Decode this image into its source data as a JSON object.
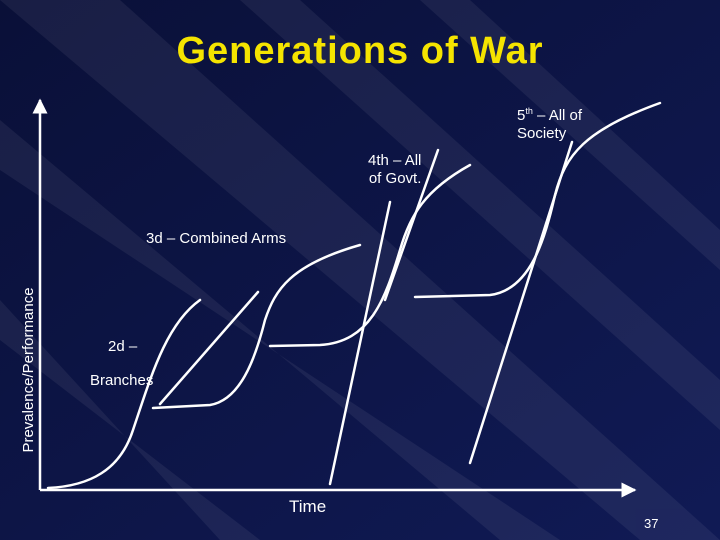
{
  "slide": {
    "title": "Generations of War",
    "y_axis_label": "Prevalence/Performance",
    "x_axis_label": "Time",
    "page_number": "37",
    "colors": {
      "background": "#0b1240",
      "title": "#f5e400",
      "text": "#ffffff",
      "curve": "#ffffff"
    }
  },
  "generations": [
    {
      "label_line1": "2d –",
      "label_line2": "Branches"
    },
    {
      "label_line1": "3d – Combined Arms"
    },
    {
      "label_line1": "4th – All",
      "label_line2": "of Govt."
    },
    {
      "label_main": "5",
      "label_sup": "th",
      "label_rest": " – All of",
      "label_line2": "Society"
    }
  ]
}
